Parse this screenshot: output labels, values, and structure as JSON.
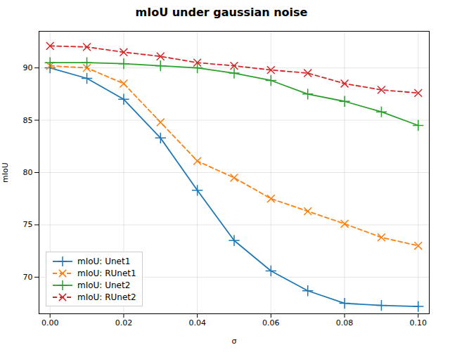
{
  "chart_data": {
    "type": "line",
    "title": "mIoU under gaussian noise",
    "xlabel": "σ",
    "ylabel": "mIoU",
    "x": [
      0.0,
      0.01,
      0.02,
      0.03,
      0.04,
      0.05,
      0.06,
      0.07,
      0.08,
      0.09,
      0.1
    ],
    "series": [
      {
        "name": "mIoU: Unet1",
        "color": "#1f77b4",
        "marker": "plus",
        "line_style": "solid",
        "values": [
          90.0,
          89.0,
          87.0,
          83.3,
          78.3,
          73.5,
          70.6,
          68.7,
          67.5,
          67.3,
          67.2
        ]
      },
      {
        "name": "mIoU: RUnet1",
        "color": "#ff7f0e",
        "marker": "x",
        "line_style": "dashed",
        "values": [
          90.2,
          90.0,
          88.5,
          84.8,
          81.1,
          79.5,
          77.5,
          76.3,
          75.1,
          73.8,
          73.0
        ]
      },
      {
        "name": "mIoU: Unet2",
        "color": "#2ca02c",
        "marker": "plus",
        "line_style": "solid",
        "values": [
          90.5,
          90.5,
          90.4,
          90.2,
          90.0,
          89.5,
          88.8,
          87.5,
          86.8,
          85.8,
          84.5
        ]
      },
      {
        "name": "mIoU: RUnet2",
        "color": "#d62728",
        "marker": "x",
        "line_style": "dashed",
        "values": [
          92.1,
          92.0,
          91.5,
          91.1,
          90.5,
          90.2,
          89.8,
          89.5,
          88.5,
          87.9,
          87.6
        ]
      }
    ],
    "xlim": [
      -0.003,
      0.103
    ],
    "ylim": [
      66.5,
      93.5
    ],
    "xticks": [
      {
        "value": 0,
        "label": "0.00"
      },
      0.02,
      0.04,
      0.06,
      0.08,
      {
        "value": 0.1,
        "label": "0.10"
      }
    ],
    "yticks": [
      70,
      75,
      80,
      85,
      90
    ],
    "grid": true,
    "legend": "lower left"
  }
}
